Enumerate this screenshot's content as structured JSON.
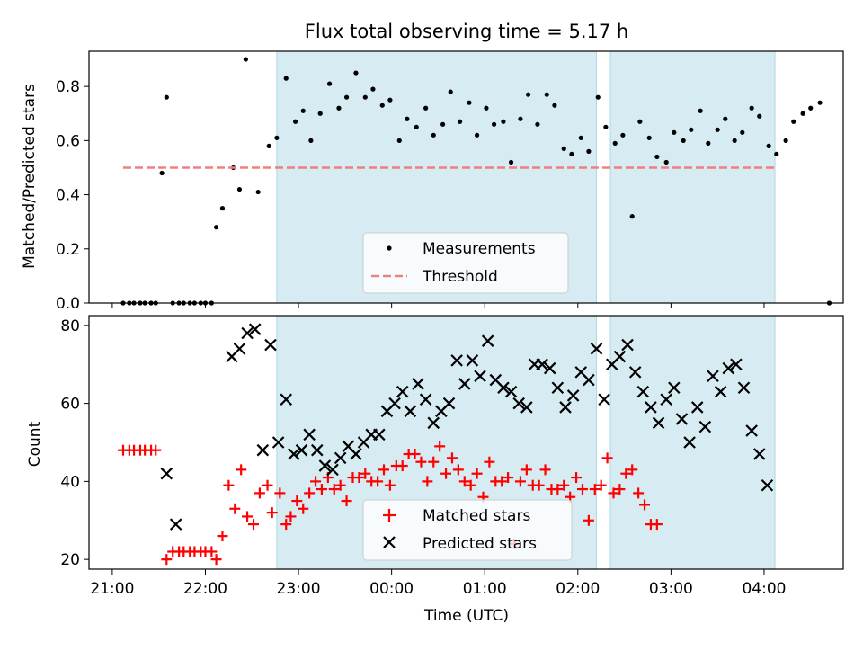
{
  "title": "Flux total observing time = 5.17 h",
  "xlabel": "Time (UTC)",
  "colors": {
    "measurement": "#000000",
    "threshold": "#f08080",
    "matched": "#ff0000",
    "predicted": "#000000",
    "shade": "#add8e6"
  },
  "chart_data": [
    {
      "type": "scatter",
      "ylabel": "Matched/Predicted stars",
      "ylim": [
        0,
        0.93
      ],
      "yticks": [
        "0.0",
        "0.2",
        "0.4",
        "0.6",
        "0.8"
      ],
      "ytick_values": [
        0,
        0.2,
        0.4,
        0.6,
        0.8
      ],
      "xlim_hours": [
        20.75,
        28.85
      ],
      "shaded_intervals": [
        [
          "22:46",
          "02:12"
        ],
        [
          "02:21",
          "04:07"
        ]
      ],
      "threshold": 0.5,
      "legend": {
        "position": "bottom-center",
        "entries": [
          "Measurements",
          "Threshold"
        ]
      },
      "series": [
        {
          "name": "Measurements",
          "points": [
            [
              "21:07",
              0
            ],
            [
              "21:11",
              0
            ],
            [
              "21:14",
              0
            ],
            [
              "21:18",
              0
            ],
            [
              "21:21",
              0
            ],
            [
              "21:25",
              0
            ],
            [
              "21:28",
              0
            ],
            [
              "21:32",
              0.48
            ],
            [
              "21:35",
              0.76
            ],
            [
              "21:39",
              0
            ],
            [
              "21:43",
              0
            ],
            [
              "21:46",
              0
            ],
            [
              "21:50",
              0
            ],
            [
              "21:53",
              0
            ],
            [
              "21:57",
              0
            ],
            [
              "22:00",
              0
            ],
            [
              "22:04",
              0
            ],
            [
              "22:07",
              0.28
            ],
            [
              "22:11",
              0.35
            ],
            [
              "22:18",
              0.5
            ],
            [
              "22:22",
              0.42
            ],
            [
              "22:26",
              0.9
            ],
            [
              "22:34",
              0.41
            ],
            [
              "22:41",
              0.58
            ],
            [
              "22:46",
              0.61
            ],
            [
              "22:52",
              0.83
            ],
            [
              "22:58",
              0.67
            ],
            [
              "23:03",
              0.71
            ],
            [
              "23:08",
              0.6
            ],
            [
              "23:14",
              0.7
            ],
            [
              "23:20",
              0.81
            ],
            [
              "23:26",
              0.72
            ],
            [
              "23:31",
              0.76
            ],
            [
              "23:37",
              0.85
            ],
            [
              "23:43",
              0.76
            ],
            [
              "23:48",
              0.79
            ],
            [
              "23:54",
              0.73
            ],
            [
              "23:59",
              0.75
            ],
            [
              "00:05",
              0.6
            ],
            [
              "00:10",
              0.68
            ],
            [
              "00:16",
              0.65
            ],
            [
              "00:22",
              0.72
            ],
            [
              "00:27",
              0.62
            ],
            [
              "00:33",
              0.66
            ],
            [
              "00:38",
              0.78
            ],
            [
              "00:44",
              0.67
            ],
            [
              "00:50",
              0.74
            ],
            [
              "00:55",
              0.62
            ],
            [
              "01:01",
              0.72
            ],
            [
              "01:06",
              0.66
            ],
            [
              "01:12",
              0.67
            ],
            [
              "01:17",
              0.52
            ],
            [
              "01:23",
              0.68
            ],
            [
              "01:28",
              0.77
            ],
            [
              "01:34",
              0.66
            ],
            [
              "01:40",
              0.77
            ],
            [
              "01:45",
              0.73
            ],
            [
              "01:51",
              0.57
            ],
            [
              "01:56",
              0.55
            ],
            [
              "02:02",
              0.61
            ],
            [
              "02:07",
              0.56
            ],
            [
              "02:13",
              0.76
            ],
            [
              "02:18",
              0.65
            ],
            [
              "02:24",
              0.59
            ],
            [
              "02:29",
              0.62
            ],
            [
              "02:35",
              0.32
            ],
            [
              "02:40",
              0.67
            ],
            [
              "02:46",
              0.61
            ],
            [
              "02:51",
              0.54
            ],
            [
              "02:57",
              0.52
            ],
            [
              "03:02",
              0.63
            ],
            [
              "03:08",
              0.6
            ],
            [
              "03:13",
              0.64
            ],
            [
              "03:19",
              0.71
            ],
            [
              "03:24",
              0.59
            ],
            [
              "03:30",
              0.64
            ],
            [
              "03:35",
              0.68
            ],
            [
              "03:41",
              0.6
            ],
            [
              "03:46",
              0.63
            ],
            [
              "03:52",
              0.72
            ],
            [
              "03:57",
              0.69
            ],
            [
              "04:03",
              0.58
            ],
            [
              "04:08",
              0.55
            ],
            [
              "04:14",
              0.6
            ],
            [
              "04:19",
              0.67
            ],
            [
              "04:25",
              0.7
            ],
            [
              "04:30",
              0.72
            ],
            [
              "04:36",
              0.74
            ],
            [
              "04:42",
              0
            ]
          ]
        },
        {
          "name": "Threshold",
          "x_range": [
            "21:07",
            "04:09"
          ],
          "value": 0.5
        }
      ]
    },
    {
      "type": "scatter",
      "ylabel": "Count",
      "ylim": [
        17.5,
        82.5
      ],
      "yticks": [
        "20",
        "40",
        "60",
        "80"
      ],
      "ytick_values": [
        20,
        40,
        60,
        80
      ],
      "xlim_hours": [
        20.75,
        28.85
      ],
      "xticks": [
        "21:00",
        "22:00",
        "23:00",
        "00:00",
        "01:00",
        "02:00",
        "03:00",
        "04:00"
      ],
      "xtick_hours": [
        21,
        22,
        23,
        24,
        25,
        26,
        27,
        28
      ],
      "shaded_intervals": [
        [
          "22:46",
          "02:12"
        ],
        [
          "02:21",
          "04:07"
        ]
      ],
      "legend": {
        "position": "bottom-center",
        "entries": [
          "Matched stars",
          "Predicted stars"
        ]
      },
      "series": [
        {
          "name": "Matched stars",
          "points": [
            [
              "21:07",
              48
            ],
            [
              "21:11",
              48
            ],
            [
              "21:14",
              48
            ],
            [
              "21:18",
              48
            ],
            [
              "21:21",
              48
            ],
            [
              "21:25",
              48
            ],
            [
              "21:28",
              48
            ],
            [
              "21:35",
              20
            ],
            [
              "21:39",
              22
            ],
            [
              "21:43",
              22
            ],
            [
              "21:46",
              22
            ],
            [
              "21:50",
              22
            ],
            [
              "21:53",
              22
            ],
            [
              "21:57",
              22
            ],
            [
              "22:00",
              22
            ],
            [
              "22:04",
              22
            ],
            [
              "22:07",
              20
            ],
            [
              "22:11",
              26
            ],
            [
              "22:15",
              39
            ],
            [
              "22:19",
              33
            ],
            [
              "22:23",
              43
            ],
            [
              "22:27",
              31
            ],
            [
              "22:31",
              29
            ],
            [
              "22:35",
              37
            ],
            [
              "22:40",
              39
            ],
            [
              "22:43",
              32
            ],
            [
              "22:48",
              37
            ],
            [
              "22:52",
              29
            ],
            [
              "22:55",
              31
            ],
            [
              "22:59",
              35
            ],
            [
              "23:03",
              33
            ],
            [
              "23:07",
              37
            ],
            [
              "23:11",
              40
            ],
            [
              "23:15",
              38
            ],
            [
              "23:19",
              41
            ],
            [
              "23:23",
              38
            ],
            [
              "23:27",
              39
            ],
            [
              "23:31",
              35
            ],
            [
              "23:35",
              41
            ],
            [
              "23:39",
              41
            ],
            [
              "23:43",
              42
            ],
            [
              "23:47",
              40
            ],
            [
              "23:51",
              40
            ],
            [
              "23:55",
              43
            ],
            [
              "23:59",
              39
            ],
            [
              "00:03",
              44
            ],
            [
              "00:07",
              44
            ],
            [
              "00:11",
              47
            ],
            [
              "00:15",
              47
            ],
            [
              "00:19",
              45
            ],
            [
              "00:23",
              40
            ],
            [
              "00:27",
              45
            ],
            [
              "00:31",
              49
            ],
            [
              "00:35",
              42
            ],
            [
              "00:39",
              46
            ],
            [
              "00:43",
              43
            ],
            [
              "00:47",
              40
            ],
            [
              "00:51",
              39
            ],
            [
              "00:55",
              42
            ],
            [
              "00:59",
              36
            ],
            [
              "01:03",
              45
            ],
            [
              "01:07",
              40
            ],
            [
              "01:11",
              40
            ],
            [
              "01:15",
              41
            ],
            [
              "01:19",
              24
            ],
            [
              "01:23",
              40
            ],
            [
              "01:27",
              43
            ],
            [
              "01:31",
              39
            ],
            [
              "01:35",
              39
            ],
            [
              "01:39",
              43
            ],
            [
              "01:43",
              38
            ],
            [
              "01:47",
              38
            ],
            [
              "01:51",
              39
            ],
            [
              "01:55",
              36
            ],
            [
              "01:59",
              41
            ],
            [
              "02:03",
              38
            ],
            [
              "02:07",
              30
            ],
            [
              "02:11",
              38
            ],
            [
              "02:15",
              39
            ],
            [
              "02:19",
              46
            ],
            [
              "02:23",
              37
            ],
            [
              "02:27",
              38
            ],
            [
              "02:31",
              42
            ],
            [
              "02:35",
              43
            ],
            [
              "02:39",
              37
            ],
            [
              "02:43",
              34
            ],
            [
              "02:47",
              29
            ],
            [
              "02:51",
              29
            ]
          ]
        },
        {
          "name": "Predicted stars",
          "points": [
            [
              "21:35",
              42
            ],
            [
              "21:41",
              29
            ],
            [
              "22:17",
              72
            ],
            [
              "22:22",
              74
            ],
            [
              "22:27",
              78
            ],
            [
              "22:32",
              79
            ],
            [
              "22:37",
              48
            ],
            [
              "22:42",
              75
            ],
            [
              "22:47",
              50
            ],
            [
              "22:52",
              61
            ],
            [
              "22:57",
              47
            ],
            [
              "23:02",
              48
            ],
            [
              "23:07",
              52
            ],
            [
              "23:12",
              48
            ],
            [
              "23:17",
              44
            ],
            [
              "23:22",
              43
            ],
            [
              "23:27",
              46
            ],
            [
              "23:32",
              49
            ],
            [
              "23:37",
              47
            ],
            [
              "23:42",
              50
            ],
            [
              "23:47",
              52
            ],
            [
              "23:52",
              52
            ],
            [
              "23:57",
              58
            ],
            [
              "00:02",
              60
            ],
            [
              "00:07",
              63
            ],
            [
              "00:12",
              58
            ],
            [
              "00:17",
              65
            ],
            [
              "00:22",
              61
            ],
            [
              "00:27",
              55
            ],
            [
              "00:32",
              58
            ],
            [
              "00:37",
              60
            ],
            [
              "00:42",
              71
            ],
            [
              "00:47",
              65
            ],
            [
              "00:52",
              71
            ],
            [
              "00:57",
              67
            ],
            [
              "01:02",
              76
            ],
            [
              "01:07",
              66
            ],
            [
              "01:12",
              64
            ],
            [
              "01:17",
              63
            ],
            [
              "01:22",
              60
            ],
            [
              "01:27",
              59
            ],
            [
              "01:32",
              70
            ],
            [
              "01:37",
              70
            ],
            [
              "01:42",
              69
            ],
            [
              "01:47",
              64
            ],
            [
              "01:52",
              59
            ],
            [
              "01:57",
              62
            ],
            [
              "02:02",
              68
            ],
            [
              "02:07",
              66
            ],
            [
              "02:12",
              74
            ],
            [
              "02:17",
              61
            ],
            [
              "02:22",
              70
            ],
            [
              "02:27",
              72
            ],
            [
              "02:32",
              75
            ],
            [
              "02:37",
              68
            ],
            [
              "02:42",
              63
            ],
            [
              "02:47",
              59
            ],
            [
              "02:52",
              55
            ],
            [
              "02:57",
              61
            ],
            [
              "03:02",
              64
            ],
            [
              "03:07",
              56
            ],
            [
              "03:12",
              50
            ],
            [
              "03:17",
              59
            ],
            [
              "03:22",
              54
            ],
            [
              "03:27",
              67
            ],
            [
              "03:32",
              63
            ],
            [
              "03:37",
              69
            ],
            [
              "03:42",
              70
            ],
            [
              "03:47",
              64
            ],
            [
              "03:52",
              53
            ],
            [
              "03:57",
              47
            ],
            [
              "04:02",
              39
            ]
          ]
        }
      ]
    }
  ]
}
